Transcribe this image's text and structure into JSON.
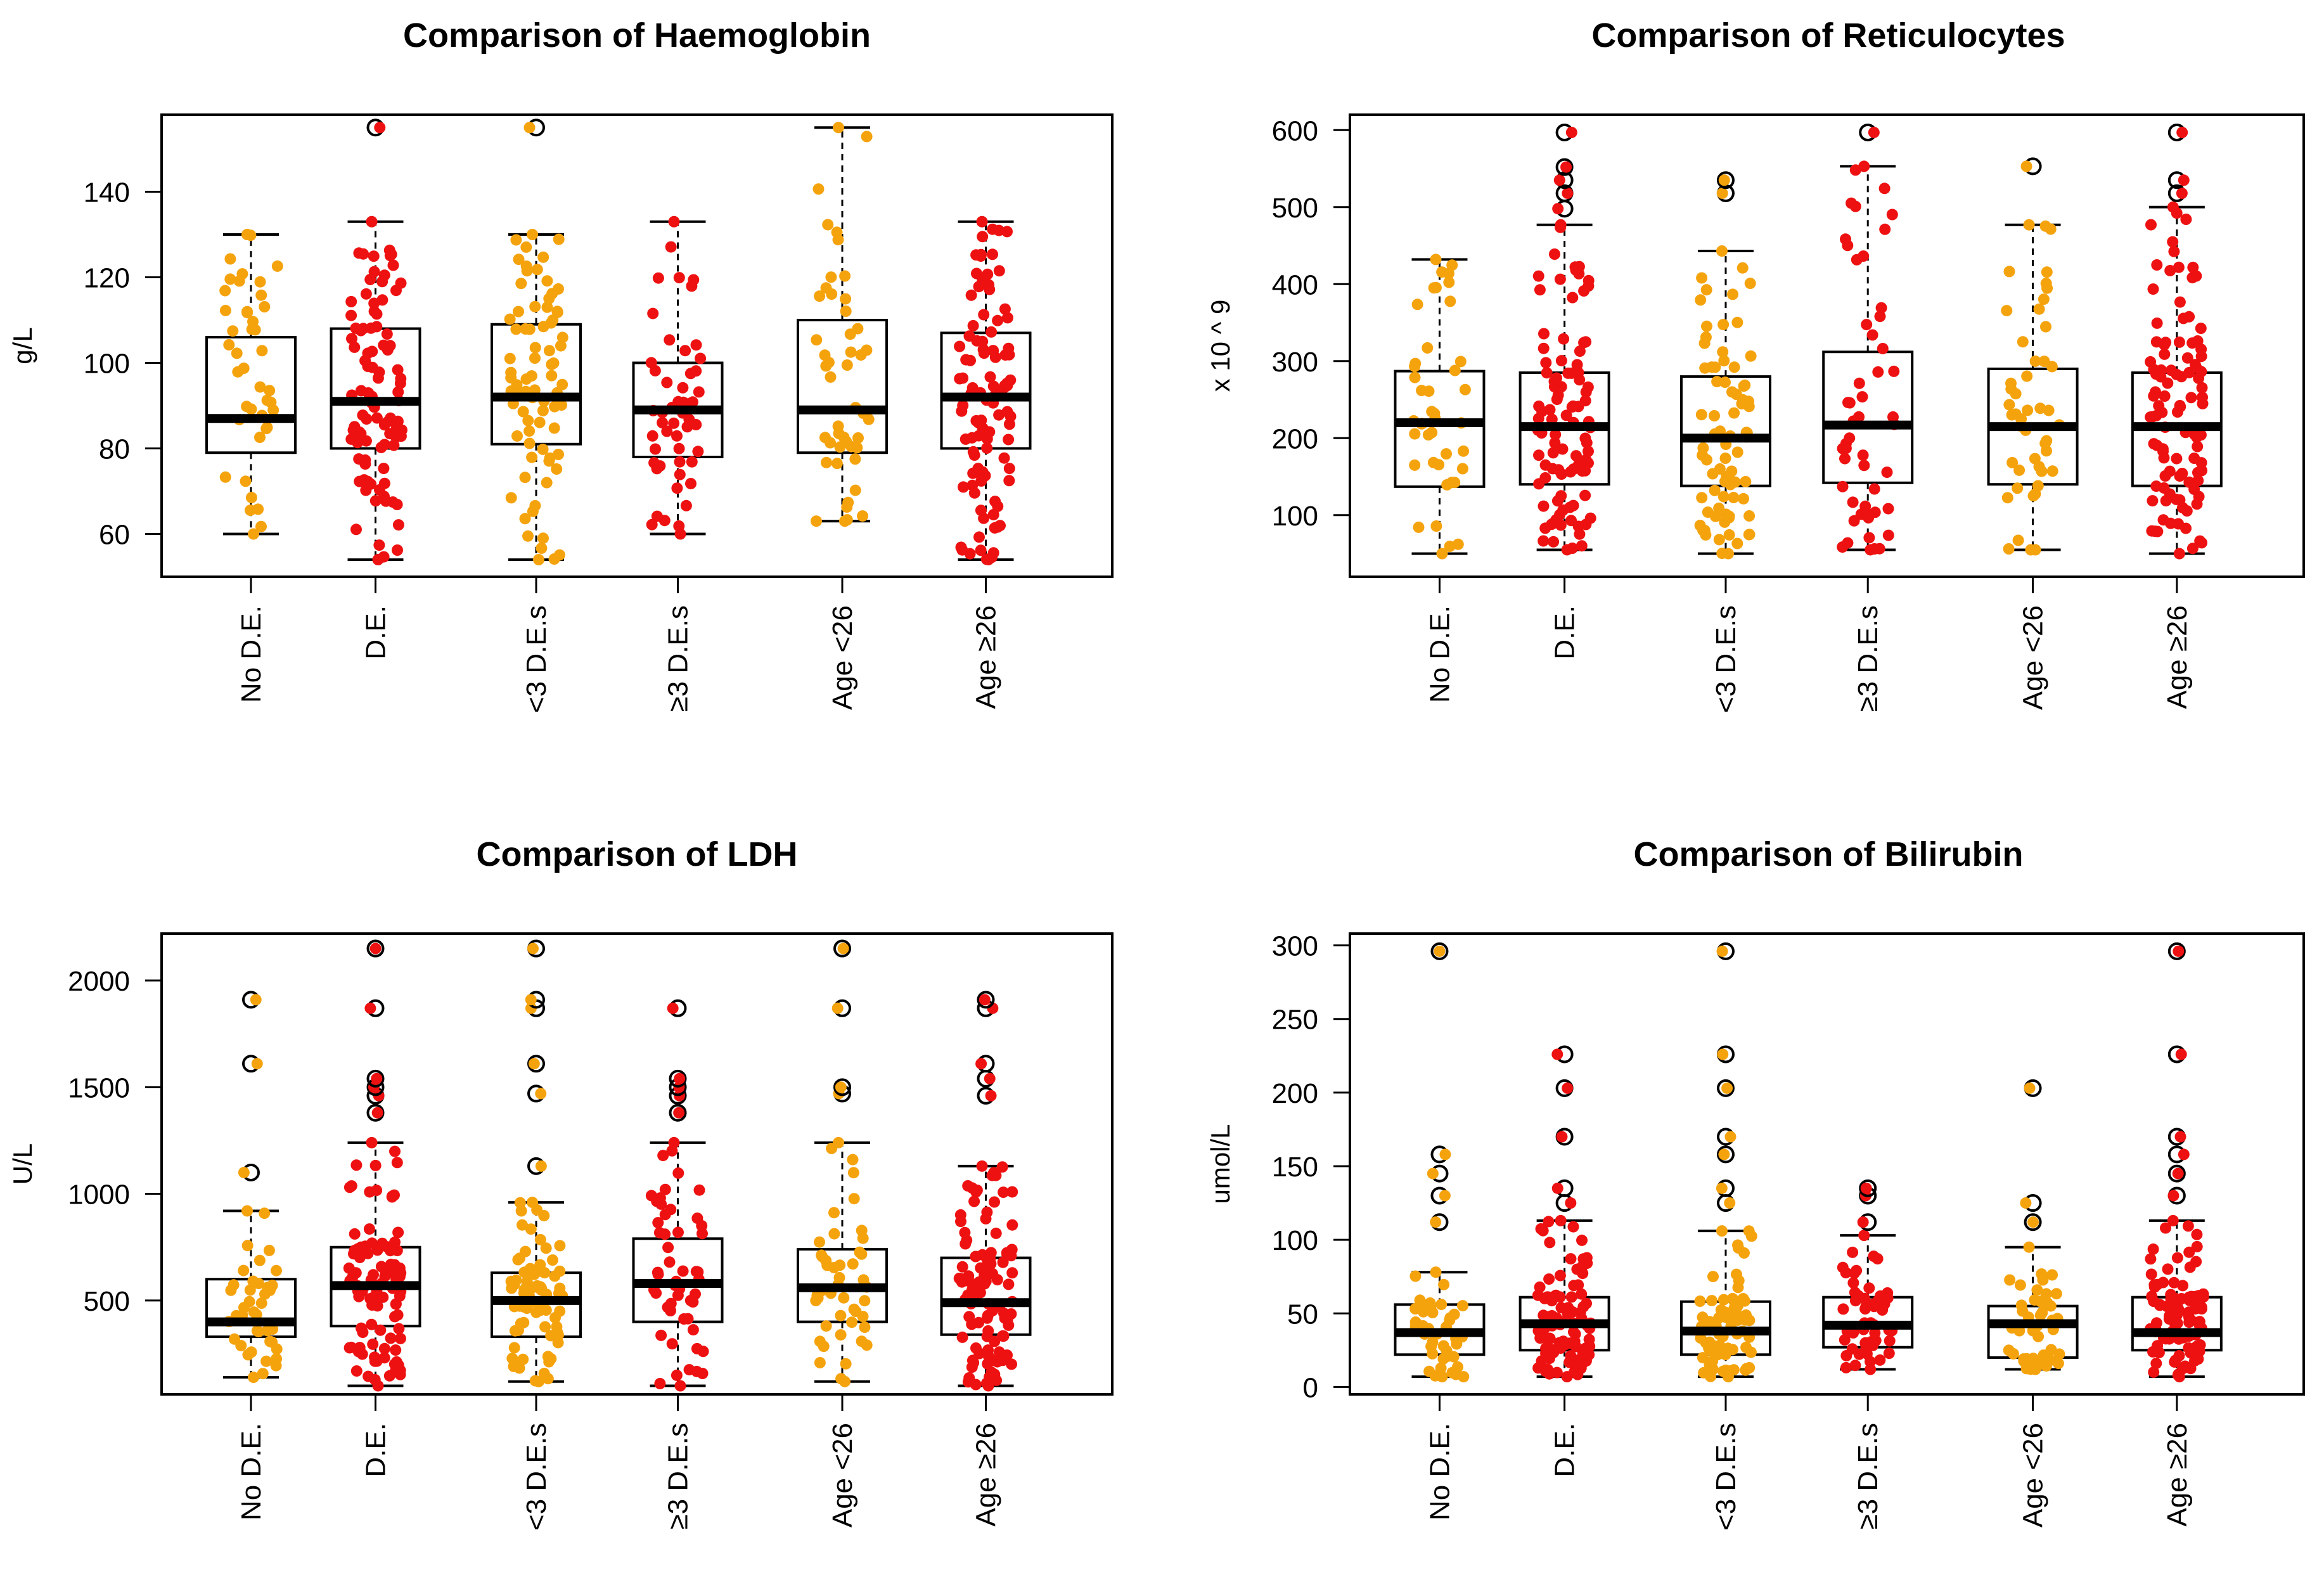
{
  "colors": {
    "orange": "#f5a30d",
    "red": "#ee1111",
    "box_stroke": "#000000",
    "background": "#ffffff"
  },
  "categories": [
    "No D.E.",
    "D.E.",
    "<3 D.E.s",
    "≥3 D.E.s",
    "Age <26",
    "Age ≥26"
  ],
  "category_colors": [
    "orange",
    "red",
    "orange",
    "red",
    "orange",
    "red"
  ],
  "chart_data": [
    {
      "type": "boxplot",
      "title": "Comparison of Haemoglobin",
      "ylabel": "g/L",
      "xlabel": "",
      "ylim": [
        50,
        158
      ],
      "yticks": [
        60,
        80,
        100,
        120,
        140
      ],
      "categories": [
        "No D.E.",
        "D.E.",
        "<3 D.E.s",
        "≥3 D.E.s",
        "Age <26",
        "Age ≥26"
      ],
      "boxes": [
        {
          "category": "No D.E.",
          "whisker_low": 60,
          "q1": 79,
          "median": 87,
          "q3": 106,
          "whisker_high": 130,
          "outliers": []
        },
        {
          "category": "D.E.",
          "whisker_low": 54,
          "q1": 80,
          "median": 91,
          "q3": 108,
          "whisker_high": 133,
          "outliers": [
            155
          ]
        },
        {
          "category": "<3 D.E.s",
          "whisker_low": 54,
          "q1": 81,
          "median": 92,
          "q3": 109,
          "whisker_high": 130,
          "outliers": [
            155
          ]
        },
        {
          "category": "≥3 D.E.s",
          "whisker_low": 60,
          "q1": 78,
          "median": 89,
          "q3": 100,
          "whisker_high": 133,
          "outliers": []
        },
        {
          "category": "Age <26",
          "whisker_low": 63,
          "q1": 79,
          "median": 89,
          "q3": 110,
          "whisker_high": 155,
          "outliers": []
        },
        {
          "category": "Age ≥26",
          "whisker_low": 54,
          "q1": 80,
          "median": 92,
          "q3": 107,
          "whisker_high": 133,
          "outliers": []
        }
      ],
      "points_per_group": [
        40,
        95,
        75,
        50,
        45,
        100
      ]
    },
    {
      "type": "boxplot",
      "title": "Comparison of Reticulocytes",
      "ylabel": "x 10 ^ 9",
      "xlabel": "",
      "ylim": [
        20,
        620
      ],
      "yticks": [
        100,
        200,
        300,
        400,
        500,
        600
      ],
      "categories": [
        "No D.E.",
        "D.E.",
        "<3 D.E.s",
        "≥3 D.E.s",
        "Age <26",
        "Age ≥26"
      ],
      "boxes": [
        {
          "category": "No D.E.",
          "whisker_low": 50,
          "q1": 137,
          "median": 220,
          "q3": 287,
          "whisker_high": 432,
          "outliers": []
        },
        {
          "category": "D.E.",
          "whisker_low": 55,
          "q1": 140,
          "median": 215,
          "q3": 285,
          "whisker_high": 477,
          "outliers": [
            498,
            518,
            535,
            552,
            597
          ]
        },
        {
          "category": "<3 D.E.s",
          "whisker_low": 50,
          "q1": 138,
          "median": 200,
          "q3": 280,
          "whisker_high": 443,
          "outliers": [
            518,
            535
          ]
        },
        {
          "category": "≥3 D.E.s",
          "whisker_low": 55,
          "q1": 142,
          "median": 217,
          "q3": 312,
          "whisker_high": 553,
          "outliers": [
            597
          ]
        },
        {
          "category": "Age <26",
          "whisker_low": 55,
          "q1": 140,
          "median": 215,
          "q3": 290,
          "whisker_high": 477,
          "outliers": [
            553
          ]
        },
        {
          "category": "Age ≥26",
          "whisker_low": 50,
          "q1": 138,
          "median": 215,
          "q3": 285,
          "whisker_high": 500,
          "outliers": [
            518,
            535,
            597
          ]
        }
      ],
      "points_per_group": [
        40,
        95,
        75,
        50,
        45,
        100
      ]
    },
    {
      "type": "boxplot",
      "title": "Comparison of LDH",
      "ylabel": "U/L",
      "xlabel": "",
      "ylim": [
        60,
        2220
      ],
      "yticks": [
        500,
        1000,
        1500,
        2000
      ],
      "categories": [
        "No D.E.",
        "D.E.",
        "<3 D.E.s",
        "≥3 D.E.s",
        "Age <26",
        "Age ≥26"
      ],
      "boxes": [
        {
          "category": "No D.E.",
          "whisker_low": 140,
          "q1": 330,
          "median": 400,
          "q3": 600,
          "whisker_high": 920,
          "outliers": [
            1100,
            1610,
            1910
          ]
        },
        {
          "category": "D.E.",
          "whisker_low": 100,
          "q1": 380,
          "median": 570,
          "q3": 750,
          "whisker_high": 1240,
          "outliers": [
            1380,
            1460,
            1500,
            1540,
            1870,
            2150
          ]
        },
        {
          "category": "<3 D.E.s",
          "whisker_low": 120,
          "q1": 330,
          "median": 500,
          "q3": 630,
          "whisker_high": 960,
          "outliers": [
            1130,
            1470,
            1610,
            1870,
            1910,
            2150
          ]
        },
        {
          "category": "≥3 D.E.s",
          "whisker_low": 100,
          "q1": 400,
          "median": 580,
          "q3": 790,
          "whisker_high": 1240,
          "outliers": [
            1380,
            1460,
            1500,
            1540,
            1870
          ]
        },
        {
          "category": "Age <26",
          "whisker_low": 120,
          "q1": 400,
          "median": 560,
          "q3": 740,
          "whisker_high": 1240,
          "outliers": [
            1470,
            1500,
            1870,
            2150
          ]
        },
        {
          "category": "Age ≥26",
          "whisker_low": 100,
          "q1": 340,
          "median": 490,
          "q3": 700,
          "whisker_high": 1130,
          "outliers": [
            1460,
            1540,
            1610,
            1870,
            1910
          ]
        }
      ],
      "points_per_group": [
        40,
        95,
        75,
        50,
        45,
        100
      ]
    },
    {
      "type": "boxplot",
      "title": "Comparison of Bilirubin",
      "ylabel": "umol/L",
      "xlabel": "",
      "ylim": [
        -5,
        308
      ],
      "yticks": [
        0,
        50,
        100,
        150,
        200,
        250,
        300
      ],
      "categories": [
        "No D.E.",
        "D.E.",
        "<3 D.E.s",
        "≥3 D.E.s",
        "Age <26",
        "Age ≥26"
      ],
      "boxes": [
        {
          "category": "No D.E.",
          "whisker_low": 7,
          "q1": 22,
          "median": 37,
          "q3": 56,
          "whisker_high": 78,
          "outliers": [
            112,
            130,
            145,
            158,
            296
          ]
        },
        {
          "category": "D.E.",
          "whisker_low": 7,
          "q1": 25,
          "median": 43,
          "q3": 61,
          "whisker_high": 113,
          "outliers": [
            125,
            135,
            170,
            203,
            226
          ]
        },
        {
          "category": "<3 D.E.s",
          "whisker_low": 7,
          "q1": 22,
          "median": 38,
          "q3": 58,
          "whisker_high": 106,
          "outliers": [
            125,
            135,
            158,
            170,
            203,
            226,
            296
          ]
        },
        {
          "category": "≥3 D.E.s",
          "whisker_low": 12,
          "q1": 27,
          "median": 42,
          "q3": 61,
          "whisker_high": 103,
          "outliers": [
            112,
            130,
            135
          ]
        },
        {
          "category": "Age <26",
          "whisker_low": 12,
          "q1": 20,
          "median": 43,
          "q3": 55,
          "whisker_high": 95,
          "outliers": [
            112,
            125,
            203
          ]
        },
        {
          "category": "Age ≥26",
          "whisker_low": 7,
          "q1": 25,
          "median": 37,
          "q3": 61,
          "whisker_high": 113,
          "outliers": [
            130,
            145,
            158,
            170,
            226,
            296
          ]
        }
      ],
      "points_per_group": [
        40,
        95,
        75,
        50,
        45,
        100
      ]
    }
  ]
}
